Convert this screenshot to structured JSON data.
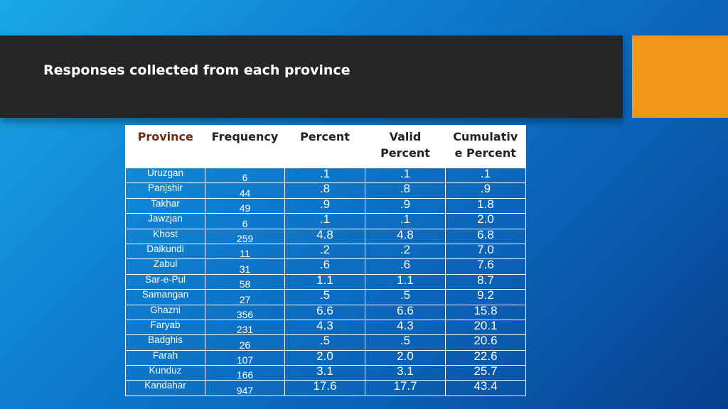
{
  "slide": {
    "title": "Responses collected from each province"
  },
  "table": {
    "headers": [
      "Province",
      "Frequency",
      "Percent",
      "Valid Percent",
      "Cumulative Percent"
    ],
    "header_lines": {
      "province": "Province",
      "frequency": "Frequency",
      "percent": "Percent",
      "valid_1": "Valid",
      "valid_2": "Percent",
      "cum_1": "Cumulativ",
      "cum_2": "e Percent"
    },
    "rows": [
      {
        "province": "Uruzgan",
        "frequency": "6",
        "percent": ".1",
        "valid": ".1",
        "cumulative": ".1"
      },
      {
        "province": "Panjshir",
        "frequency": "44",
        "percent": ".8",
        "valid": ".8",
        "cumulative": ".9"
      },
      {
        "province": "Takhar",
        "frequency": "49",
        "percent": ".9",
        "valid": ".9",
        "cumulative": "1.8"
      },
      {
        "province": "Jawzjan",
        "frequency": "6",
        "percent": ".1",
        "valid": ".1",
        "cumulative": "2.0"
      },
      {
        "province": "Khost",
        "frequency": "259",
        "percent": "4.8",
        "valid": "4.8",
        "cumulative": "6.8"
      },
      {
        "province": "Daikundi",
        "frequency": "11",
        "percent": ".2",
        "valid": ".2",
        "cumulative": "7.0"
      },
      {
        "province": "Zabul",
        "frequency": "31",
        "percent": ".6",
        "valid": ".6",
        "cumulative": "7.6"
      },
      {
        "province": "Sar-e-Pul",
        "frequency": "58",
        "percent": "1.1",
        "valid": "1.1",
        "cumulative": "8.7"
      },
      {
        "province": "Samangan",
        "frequency": "27",
        "percent": ".5",
        "valid": ".5",
        "cumulative": "9.2"
      },
      {
        "province": "Ghazni",
        "frequency": "356",
        "percent": "6.6",
        "valid": "6.6",
        "cumulative": "15.8"
      },
      {
        "province": "Faryab",
        "frequency": "231",
        "percent": "4.3",
        "valid": "4.3",
        "cumulative": "20.1"
      },
      {
        "province": "Badghis",
        "frequency": "26",
        "percent": ".5",
        "valid": ".5",
        "cumulative": "20.6"
      },
      {
        "province": "Farah",
        "frequency": "107",
        "percent": "2.0",
        "valid": "2.0",
        "cumulative": "22.6"
      },
      {
        "province": "Kunduz",
        "frequency": "166",
        "percent": "3.1",
        "valid": "3.1",
        "cumulative": "25.7"
      },
      {
        "province": "Kandahar",
        "frequency": "947",
        "percent": "17.6",
        "valid": "17.7",
        "cumulative": "43.4"
      }
    ]
  },
  "colors": {
    "title_bar": "#262626",
    "accent": "#f0961b",
    "province_header": "#6b2a12"
  }
}
